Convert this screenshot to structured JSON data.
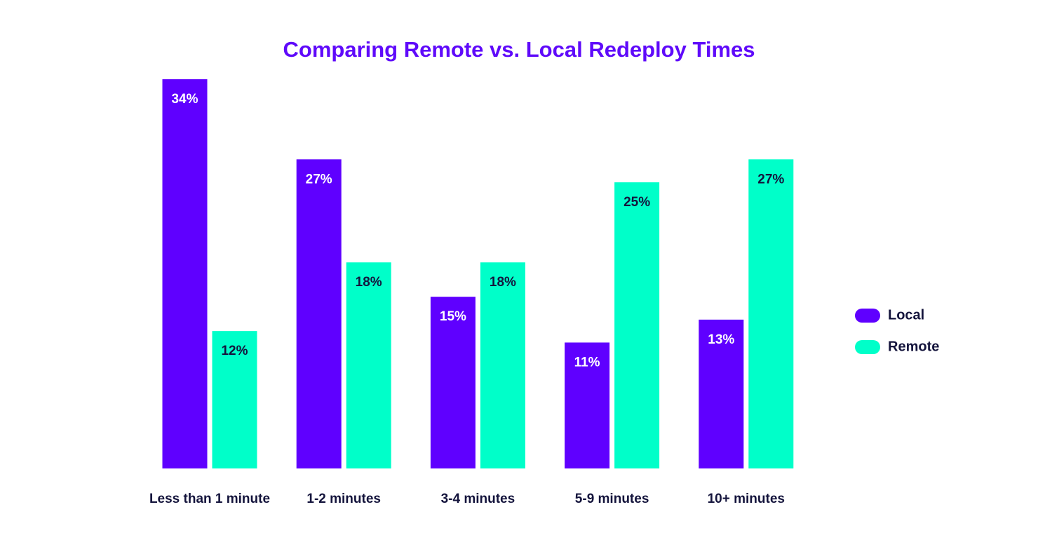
{
  "chart_data": {
    "type": "bar",
    "title": "Comparing Remote vs. Local Redeploy Times",
    "categories": [
      "Less than 1 minute",
      "1-2 minutes",
      "3-4 minutes",
      "5-9 minutes",
      "10+ minutes"
    ],
    "series": [
      {
        "name": "Local",
        "color": "#5f00ff",
        "values": [
          34,
          27,
          15,
          11,
          13
        ],
        "value_labels": [
          "34%",
          "27%",
          "15%",
          "11%",
          "13%"
        ]
      },
      {
        "name": "Remote",
        "color": "#00ffc9",
        "values": [
          12,
          18,
          18,
          25,
          27
        ],
        "value_labels": [
          "12%",
          "18%",
          "18%",
          "25%",
          "27%"
        ]
      }
    ]
  }
}
